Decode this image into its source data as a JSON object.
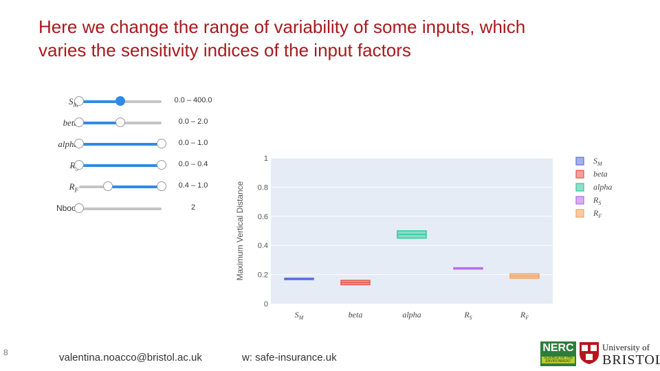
{
  "slide": {
    "title_line1": "Here we change the range of variability of some inputs, which",
    "title_line2": "varies the sensitivity indices of the input factors",
    "number": "8",
    "footer_email": "valentina.noacco@bristol.ac.uk",
    "footer_web": "w: safe-insurance.uk",
    "logos": {
      "nerc": "NERC",
      "nerc_sub": "SCIENCE OF THE ENVIRONMENT",
      "uni_line1": "University of",
      "uni_line2": "BRISTOL"
    }
  },
  "sliders": [
    {
      "id": "sm",
      "label": "S",
      "sub": "M",
      "range": "0.0 – 400.0",
      "low": 0.0,
      "high": 0.5
    },
    {
      "id": "beta",
      "label": "beta",
      "sub": "",
      "range": "0.0 – 2.0",
      "low": 0.0,
      "high": 0.5
    },
    {
      "id": "alpha",
      "label": "alpha",
      "sub": "",
      "range": "0.0 – 1.0",
      "low": 0.0,
      "high": 1.0
    },
    {
      "id": "rs",
      "label": "R",
      "sub": "S",
      "range": "0.0 – 0.4",
      "low": 0.0,
      "high": 1.0
    },
    {
      "id": "rf",
      "label": "R",
      "sub": "F",
      "range": "0.4 – 1.0",
      "low": 0.35,
      "high": 1.0
    },
    {
      "id": "nboot",
      "label": "Nboot",
      "sub": "",
      "range": "2",
      "low": 0.0,
      "high": 0.0
    }
  ],
  "colors": {
    "accent": "#2f8ae6",
    "title": "#a8191c"
  },
  "chart_data": {
    "type": "box",
    "ylabel": "Maximum Vertical Distance",
    "ylim": [
      0,
      1
    ],
    "yticks": [
      "0",
      "0.2",
      "0.4",
      "0.6",
      "0.8",
      "1"
    ],
    "categories": [
      "S_M",
      "beta",
      "alpha",
      "R_S",
      "R_F"
    ],
    "series": [
      {
        "name": "S_M",
        "label": "S",
        "sub": "M",
        "q1": 0.165,
        "median": 0.17,
        "q3": 0.175,
        "color": "#5b6fe0"
      },
      {
        "name": "beta",
        "label": "beta",
        "sub": "",
        "q1": 0.13,
        "median": 0.145,
        "q3": 0.16,
        "color": "#e8544a"
      },
      {
        "name": "alpha",
        "label": "alpha",
        "sub": "",
        "q1": 0.45,
        "median": 0.475,
        "q3": 0.5,
        "color": "#2ec99a"
      },
      {
        "name": "R_S",
        "label": "R",
        "sub": "S",
        "q1": 0.243,
        "median": 0.245,
        "q3": 0.247,
        "color": "#b56ae8"
      },
      {
        "name": "R_F",
        "label": "R",
        "sub": "F",
        "q1": 0.175,
        "median": 0.19,
        "q3": 0.205,
        "color": "#f5a05a"
      }
    ],
    "legend_position": "top-right"
  }
}
